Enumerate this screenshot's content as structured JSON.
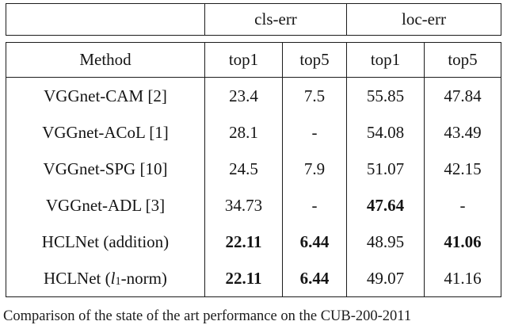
{
  "table": {
    "group_headers": {
      "cls": "cls-err",
      "loc": "loc-err"
    },
    "col_headers": {
      "method": "Method",
      "cls_top1": "top1",
      "cls_top5": "top5",
      "loc_top1": "top1",
      "loc_top5": "top5"
    },
    "rows": [
      {
        "method": "VGGnet-CAM [2]",
        "cells": [
          {
            "v": "23.4",
            "bold": false
          },
          {
            "v": "7.5",
            "bold": false
          },
          {
            "v": "55.85",
            "bold": false
          },
          {
            "v": "47.84",
            "bold": false
          }
        ]
      },
      {
        "method": "VGGnet-ACoL [1]",
        "cells": [
          {
            "v": "28.1",
            "bold": false
          },
          {
            "v": "-",
            "bold": false
          },
          {
            "v": "54.08",
            "bold": false
          },
          {
            "v": "43.49",
            "bold": false
          }
        ]
      },
      {
        "method": "VGGnet-SPG [10]",
        "cells": [
          {
            "v": "24.5",
            "bold": false
          },
          {
            "v": "7.9",
            "bold": false
          },
          {
            "v": "51.07",
            "bold": false
          },
          {
            "v": "42.15",
            "bold": false
          }
        ]
      },
      {
        "method": "VGGnet-ADL [3]",
        "cells": [
          {
            "v": "34.73",
            "bold": false
          },
          {
            "v": "-",
            "bold": false
          },
          {
            "v": "47.64",
            "bold": true
          },
          {
            "v": "-",
            "bold": false
          }
        ]
      },
      {
        "method": "HCLNet (addition)",
        "cells": [
          {
            "v": "22.11",
            "bold": true
          },
          {
            "v": "6.44",
            "bold": true
          },
          {
            "v": "48.95",
            "bold": false
          },
          {
            "v": "41.06",
            "bold": true
          }
        ]
      },
      {
        "method_prefix": "HCLNet (",
        "method_var": "l",
        "method_sub": "1",
        "method_suffix": "-norm)",
        "cells": [
          {
            "v": "22.11",
            "bold": true
          },
          {
            "v": "6.44",
            "bold": true
          },
          {
            "v": "49.07",
            "bold": false
          },
          {
            "v": "41.16",
            "bold": false
          }
        ]
      }
    ]
  },
  "caption": "Comparison of the state of the art performance on the CUB-200-2011"
}
